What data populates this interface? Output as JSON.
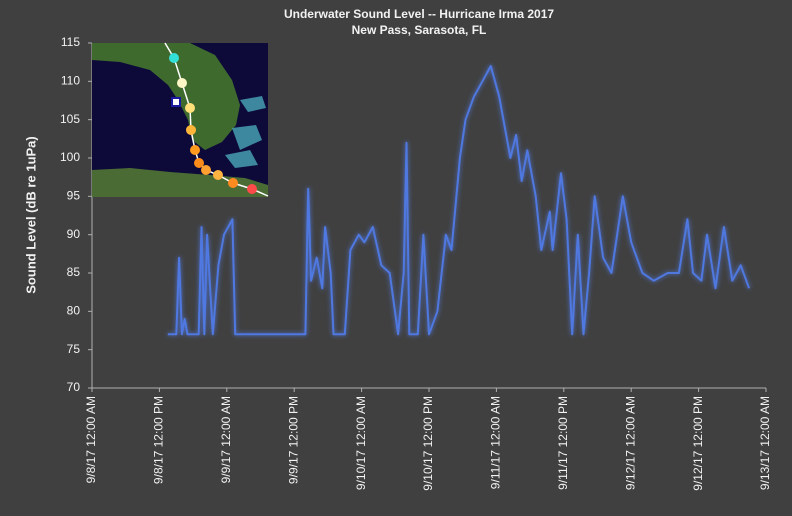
{
  "chart_data": {
    "type": "line",
    "title": "Underwater Sound Level -- Hurricane Irma 2017",
    "subtitle": "New Pass, Sarasota, FL",
    "y_label": "Sound Level (dB re 1uPa)",
    "color": "#4f78e0",
    "x": [
      "2017-09-08T13:30",
      "2017-09-08T15:00",
      "2017-09-08T15:30",
      "2017-09-08T16:00",
      "2017-09-08T16:30",
      "2017-09-08T17:00",
      "2017-09-08T19:00",
      "2017-09-08T19:30",
      "2017-09-08T20:00",
      "2017-09-08T20:30",
      "2017-09-08T21:30",
      "2017-09-08T22:30",
      "2017-09-08T23:30",
      "2017-09-09T01:00",
      "2017-09-09T01:30",
      "2017-09-09T14:00",
      "2017-09-09T14:30",
      "2017-09-09T15:00",
      "2017-09-09T16:00",
      "2017-09-09T17:00",
      "2017-09-09T17:30",
      "2017-09-09T18:30",
      "2017-09-09T19:00",
      "2017-09-09T21:00",
      "2017-09-09T22:00",
      "2017-09-09T23:30",
      "2017-09-10T00:30",
      "2017-09-10T02:00",
      "2017-09-10T03:30",
      "2017-09-10T05:00",
      "2017-09-10T06:30",
      "2017-09-10T07:30",
      "2017-09-10T08:00",
      "2017-09-10T08:30",
      "2017-09-10T10:00",
      "2017-09-10T11:00",
      "2017-09-10T12:00",
      "2017-09-10T13:30",
      "2017-09-10T15:00",
      "2017-09-10T16:00",
      "2017-09-10T17:30",
      "2017-09-10T18:30",
      "2017-09-10T20:00",
      "2017-09-10T21:30",
      "2017-09-10T23:00",
      "2017-09-11T00:30",
      "2017-09-11T01:30",
      "2017-09-11T02:30",
      "2017-09-11T03:30",
      "2017-09-11T04:30",
      "2017-09-11T05:30",
      "2017-09-11T07:00",
      "2017-09-11T08:00",
      "2017-09-11T09:30",
      "2017-09-11T10:00",
      "2017-09-11T11:30",
      "2017-09-11T12:30",
      "2017-09-11T13:30",
      "2017-09-11T14:30",
      "2017-09-11T15:30",
      "2017-09-11T16:30",
      "2017-09-11T17:30",
      "2017-09-11T19:00",
      "2017-09-11T20:30",
      "2017-09-11T22:30",
      "2017-09-12T00:00",
      "2017-09-12T02:00",
      "2017-09-12T04:00",
      "2017-09-12T06:30",
      "2017-09-12T08:30",
      "2017-09-12T10:00",
      "2017-09-12T11:00",
      "2017-09-12T12:30",
      "2017-09-12T13:30",
      "2017-09-12T15:00",
      "2017-09-12T16:30",
      "2017-09-12T18:00",
      "2017-09-12T19:30",
      "2017-09-12T21:00"
    ],
    "values": [
      77,
      77,
      87,
      77,
      79,
      77,
      77,
      91,
      77,
      90,
      77,
      86,
      90,
      92,
      77,
      77,
      96,
      84,
      87,
      83,
      91,
      85,
      77,
      77,
      88,
      90,
      89,
      91,
      86,
      85,
      77,
      85,
      102,
      77,
      77,
      90,
      77,
      80,
      90,
      88,
      100,
      105,
      108,
      110,
      112,
      108,
      104,
      100,
      103,
      97,
      101,
      95,
      88,
      93,
      88,
      98,
      92,
      77,
      90,
      77,
      85,
      95,
      87,
      85,
      95,
      89,
      85,
      84,
      85,
      85,
      92,
      85,
      84,
      90,
      83,
      91,
      84,
      86,
      83
    ],
    "xlim": [
      "2017-09-08T00:00",
      "2017-09-13T00:00"
    ],
    "xticks": [
      {
        "value": "2017-09-08T00:00",
        "label": "9/8/17 12:00 AM"
      },
      {
        "value": "2017-09-08T12:00",
        "label": "9/8/17 12:00 PM"
      },
      {
        "value": "2017-09-09T00:00",
        "label": "9/9/17 12:00 AM"
      },
      {
        "value": "2017-09-09T12:00",
        "label": "9/9/17 12:00 PM"
      },
      {
        "value": "2017-09-10T00:00",
        "label": "9/10/17 12:00 AM"
      },
      {
        "value": "2017-09-10T12:00",
        "label": "9/10/17 12:00 PM"
      },
      {
        "value": "2017-09-11T00:00",
        "label": "9/11/17 12:00 AM"
      },
      {
        "value": "2017-09-11T12:00",
        "label": "9/11/17 12:00 PM"
      },
      {
        "value": "2017-09-12T00:00",
        "label": "9/12/17 12:00 AM"
      },
      {
        "value": "2017-09-12T12:00",
        "label": "9/12/17 12:00 PM"
      },
      {
        "value": "2017-09-13T00:00",
        "label": "9/13/17 12:00 AM"
      }
    ],
    "ylim": [
      70,
      115
    ],
    "yticks": [
      70,
      75,
      80,
      85,
      90,
      95,
      100,
      105,
      110,
      115
    ]
  }
}
